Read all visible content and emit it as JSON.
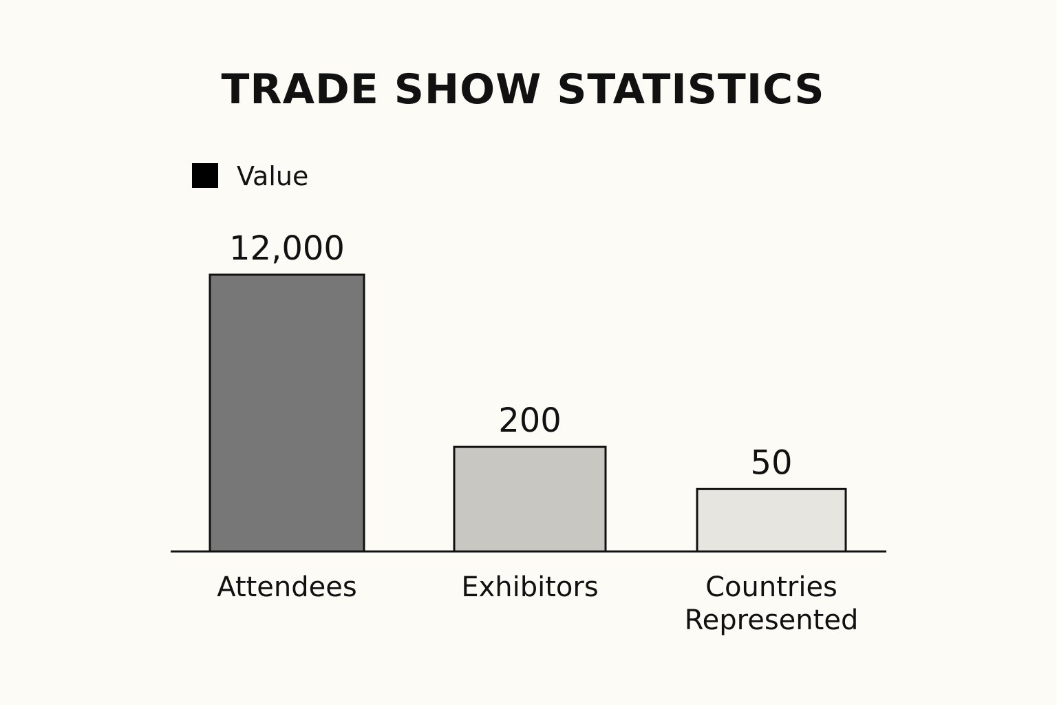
{
  "chart_data": {
    "type": "bar",
    "title": "TRADE SHOW STATISTICS",
    "categories": [
      "Attendees",
      "Exhibitors",
      "Countries Represented"
    ],
    "series": [
      {
        "name": "Value",
        "values": [
          12000,
          200,
          50
        ]
      }
    ],
    "data_labels": [
      "12,000",
      "200",
      "50"
    ],
    "scale": "non-linear (bars not drawn to proportional scale)",
    "bar_colors": [
      "#777777",
      "#c8c7c2",
      "#e6e5e0"
    ],
    "legend": {
      "label": "Value",
      "color": "#000000",
      "position": "top-left"
    },
    "xlabel": "",
    "ylabel": "",
    "grid": false
  },
  "colors": {
    "background": "#fcfbf6",
    "text": "#111111",
    "bar_stroke": "#111111",
    "axis": "#111111"
  }
}
